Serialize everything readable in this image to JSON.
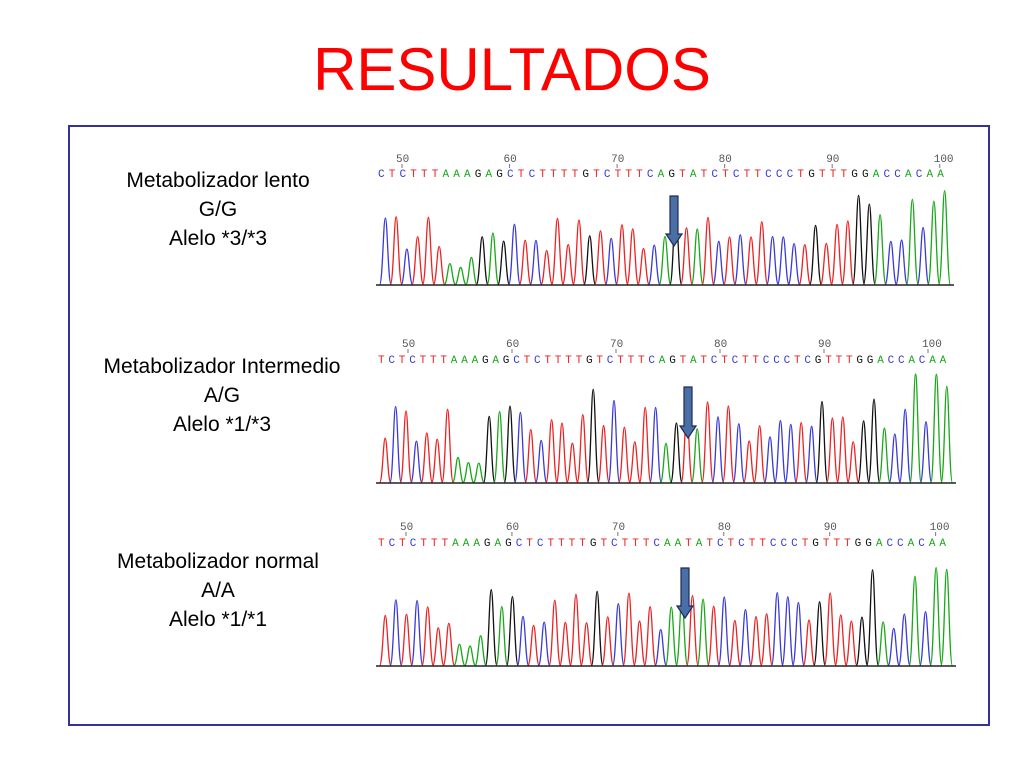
{
  "title": "RESULTADOS",
  "colors": {
    "title": "#ff0000",
    "arrow_fill": "#4a6fa5",
    "arrow_stroke": "#1e2a5a",
    "A": "#18a818",
    "C": "#3a3ad8",
    "G": "#111111",
    "T": "#ee2222"
  },
  "panels": [
    {
      "phenotype": "Metabolizador lento",
      "genotype": "G/G",
      "allele": "Alelo *3/*3",
      "ruler": [
        "50",
        "60",
        "70",
        "80",
        "90",
        "100"
      ],
      "sequence": "CTCTTTAAAGAGCTCTTTTGTCTTTCAGTATCTCTTCCCTGTTTGGACCACAA"
    },
    {
      "phenotype": "Metabolizador Intermedio",
      "genotype": "A/G",
      "allele": "Alelo *1/*3",
      "ruler": [
        "50",
        "60",
        "70",
        "80",
        "90",
        "100"
      ],
      "sequence": "TCTCTTTAAAGAGCTCTTTTGTCTTTCAGTATCTCTTCCCTCGTTTGGACCACAA"
    },
    {
      "phenotype": "Metabolizador normal",
      "genotype": "A/A",
      "allele": "Alelo *1/*1",
      "ruler": [
        "50",
        "60",
        "70",
        "80",
        "90",
        "100"
      ],
      "sequence": "TCTCTTTAAAGAGCTCTTTTGTCTTTCAATATCTCTTCCCTGTTTGGACCACAA"
    }
  ]
}
